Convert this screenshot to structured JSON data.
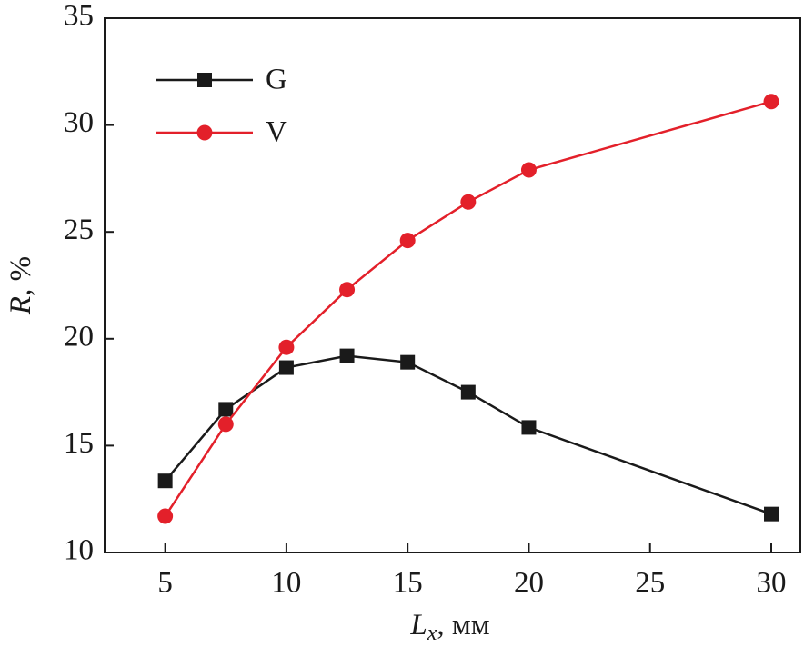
{
  "chart_data": {
    "type": "line",
    "x_label": {
      "symbol": "L",
      "subscript": "x",
      "unit": ", мм"
    },
    "y_label": {
      "symbol": "R",
      "unit": ", %"
    },
    "x": [
      5,
      7.5,
      10,
      12.5,
      15,
      17.5,
      20,
      30
    ],
    "series": [
      {
        "name": "G",
        "color": "#1a1a1a",
        "marker": "square",
        "values": [
          13.35,
          16.7,
          18.65,
          19.2,
          18.9,
          17.5,
          15.85,
          11.8
        ]
      },
      {
        "name": "V",
        "color": "#e3202a",
        "marker": "circle",
        "values": [
          11.7,
          16.0,
          19.6,
          22.3,
          24.6,
          26.4,
          27.9,
          31.1
        ]
      }
    ],
    "xlim": [
      2.5,
      31.2
    ],
    "xticks": [
      5,
      10,
      15,
      20,
      25,
      30
    ],
    "ylim": [
      10,
      35
    ],
    "yticks": [
      10,
      15,
      20,
      25,
      30,
      35
    ],
    "legend": "upper left"
  }
}
